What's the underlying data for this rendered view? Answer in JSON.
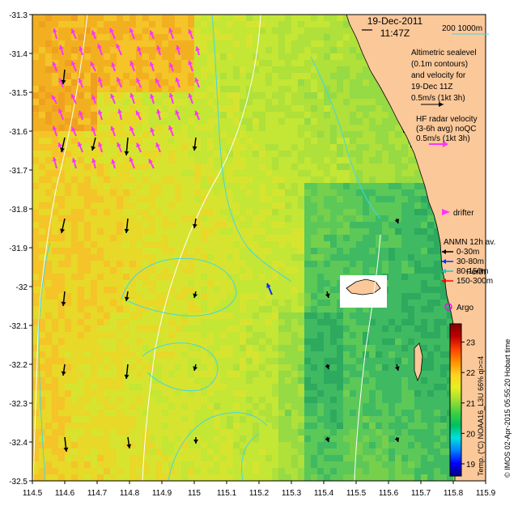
{
  "map": {
    "title_date": "19-Dec-2011",
    "title_time": "11:47Z",
    "scale_label": "200  1000m",
    "place_label": "Perth",
    "x_ticks": [
      "114.5",
      "114.6",
      "114.7",
      "114.8",
      "114.9",
      "115",
      "115.1",
      "115.2",
      "115.3",
      "115.4",
      "115.5",
      "115.6",
      "115.7",
      "115.8",
      "115.9"
    ],
    "y_ticks": [
      "-31.3",
      "-31.4",
      "-31.5",
      "-31.6",
      "-31.7",
      "-31.8",
      "-31.9",
      "-32",
      "-32.1",
      "-32.2",
      "-32.3",
      "-32.4",
      "-32.5"
    ],
    "x_range": [
      114.5,
      115.9
    ],
    "y_range": [
      -32.5,
      -31.3
    ],
    "colors": {
      "land": "#fbc89a",
      "land_outline": "#000000",
      "sealevel_arrow": "#000000",
      "hf_arrow": "#ff33ff",
      "contour": "#3fd7e8",
      "isobath": "#ffffff",
      "adcp_0_30": "#000000",
      "adcp_30_80": "#0033ff",
      "adcp_80_150": "#00cccc",
      "adcp_150_300": "#ff0000",
      "argo": "#ff00ff",
      "missing_data": "#000066"
    }
  },
  "legend": {
    "sealevel_lines": [
      "Altimetric sealevel",
      "(0.1m contours)",
      "and velocity for",
      "19-Dec 11Z",
      "0.5m/s (1kt 3h)"
    ],
    "hf_lines": [
      "HF radar velocity",
      "(3-6h avg) noQC",
      "0.5m/s (1kt 3h)"
    ],
    "drifter_label": "drifter",
    "anmn_title": "ANMN 12h av.",
    "anmn_items": [
      {
        "label": "0-30m",
        "color": "#000000"
      },
      {
        "label": "30-80m",
        "color": "#0033ff"
      },
      {
        "label": "80-150m",
        "color": "#00cccc"
      },
      {
        "label": "150-300m",
        "color": "#ff0000"
      }
    ],
    "argo_label": "Argo"
  },
  "colorbar": {
    "ticks": [
      "19",
      "20",
      "21",
      "22",
      "23"
    ],
    "min": 18.6,
    "max": 23.6,
    "label": "Temp. (°C) NOAA16_L3U 66% qi>=4",
    "stops": [
      "#000080",
      "#0000ff",
      "#0080ff",
      "#00e0e0",
      "#00c060",
      "#40d040",
      "#a0e030",
      "#e8f020",
      "#ffd020",
      "#ff9000",
      "#ff4000",
      "#c00000",
      "#800000"
    ]
  },
  "credit": "© IMOS 02-Apr-2015 05:55:20 Hobart time"
}
